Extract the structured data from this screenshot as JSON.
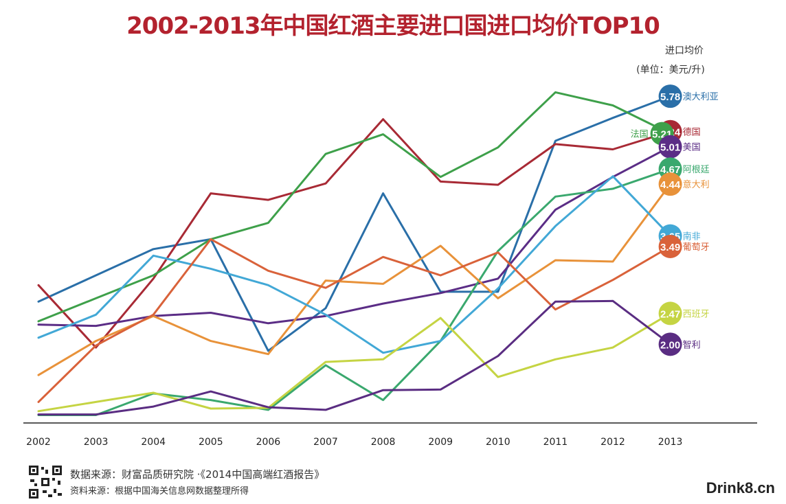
{
  "colors": {
    "title": "#b3222e",
    "澳大利亚": "#2a6fa8",
    "德国": "#a82a35",
    "法国": "#3ea04a",
    "美国": "#5b2d86",
    "阿根廷": "#3aa86e",
    "意大利": "#e8923a",
    "南非": "#42a8d6",
    "葡萄牙": "#d9623a",
    "西班牙": "#c5d443",
    "智利": "#5a2d82"
  },
  "chart_data": {
    "type": "line",
    "title": "2002-2013年中国红酒主要进口国进口均价TOP10",
    "unit_label_line1": "进口均价",
    "unit_label_line2": "(单位：美元/升)",
    "x": [
      "2002",
      "2003",
      "2004",
      "2005",
      "2006",
      "2007",
      "2008",
      "2009",
      "2010",
      "2011",
      "2012",
      "2013"
    ],
    "series": [
      {
        "name": "澳大利亚",
        "end_label": "5.78",
        "values": [
          2.65,
          3.05,
          3.45,
          3.6,
          1.9,
          2.55,
          4.3,
          2.8,
          2.8,
          5.1,
          5.45,
          5.78
        ]
      },
      {
        "name": "德国",
        "end_label": "5.24",
        "values": [
          2.9,
          1.95,
          3.0,
          4.3,
          4.2,
          4.45,
          5.43,
          4.48,
          4.43,
          5.05,
          4.97,
          5.24
        ]
      },
      {
        "name": "法国",
        "end_label": "5.21",
        "values": [
          2.35,
          2.7,
          3.05,
          3.6,
          3.85,
          4.9,
          5.2,
          4.55,
          5.0,
          5.84,
          5.64,
          5.21
        ]
      },
      {
        "name": "美国",
        "end_label": "5.01",
        "values": [
          2.3,
          2.28,
          2.43,
          2.48,
          2.32,
          2.43,
          2.62,
          2.78,
          3.0,
          4.05,
          4.55,
          5.01
        ]
      },
      {
        "name": "阿根廷",
        "end_label": "4.67",
        "values": [
          0.92,
          0.92,
          1.25,
          1.15,
          1.0,
          1.68,
          1.15,
          2.05,
          3.42,
          4.25,
          4.37,
          4.67
        ]
      },
      {
        "name": "意大利",
        "end_label": "4.44",
        "values": [
          1.53,
          2.05,
          2.43,
          2.05,
          1.85,
          2.97,
          2.92,
          3.5,
          2.7,
          3.28,
          3.26,
          4.44
        ]
      },
      {
        "name": "南非",
        "end_label": "3.65",
        "values": [
          2.1,
          2.45,
          3.35,
          3.15,
          2.9,
          2.45,
          1.87,
          2.05,
          2.85,
          3.8,
          4.56,
          3.65
        ]
      },
      {
        "name": "葡萄牙",
        "end_label": "3.49",
        "values": [
          1.12,
          1.98,
          2.45,
          3.6,
          3.12,
          2.86,
          3.33,
          3.05,
          3.4,
          2.53,
          2.98,
          3.49
        ]
      },
      {
        "name": "西班牙",
        "end_label": "2.47",
        "values": [
          0.98,
          1.12,
          1.26,
          1.02,
          1.03,
          1.73,
          1.77,
          2.4,
          1.5,
          1.77,
          1.95,
          2.47
        ]
      },
      {
        "name": "智利",
        "end_label": "2.00",
        "values": [
          0.93,
          0.93,
          1.05,
          1.28,
          1.04,
          1.0,
          1.3,
          1.31,
          1.82,
          2.65,
          2.66,
          2.0
        ]
      }
    ],
    "ylim": [
      0.8,
      6.2
    ],
    "grid": false
  },
  "footer": {
    "source_line1": "数据来源：财富品质研究院 ·《2014中国高端红酒报告》",
    "source_line2": "资料来源：根据中国海关信息网数据整理所得",
    "watermark": "Drink8.cn",
    "qr_icon": "qr-code-icon"
  }
}
